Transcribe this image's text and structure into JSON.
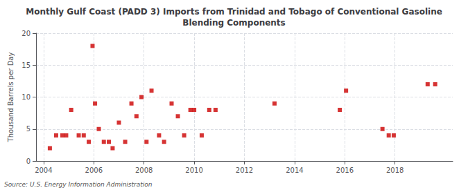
{
  "chart_data": {
    "type": "scatter",
    "title": "Monthly Gulf Coast (PADD 3) Imports from Trinidad and Tobago of Conventional Gasoline\nBlending Components",
    "ylabel": "Thousand Barrels per Day",
    "source": "Source: U.S. Energy Information Administration",
    "color": "#cc0000",
    "marker": "square",
    "grid": true,
    "xlim": [
      2003.7,
      2020.3
    ],
    "ylim": [
      0,
      20
    ],
    "xticks": [
      2004,
      2006,
      2008,
      2010,
      2012,
      2014,
      2016,
      2018
    ],
    "yticks": [
      0,
      5,
      10,
      15,
      20
    ],
    "x": [
      2004.25,
      2004.5,
      2004.75,
      2004.9,
      2005.1,
      2005.4,
      2005.6,
      2005.8,
      2005.95,
      2006.05,
      2006.2,
      2006.4,
      2006.6,
      2006.75,
      2007.0,
      2007.25,
      2007.5,
      2007.7,
      2007.9,
      2008.1,
      2008.3,
      2008.6,
      2008.8,
      2009.1,
      2009.35,
      2009.6,
      2009.85,
      2010.0,
      2010.3,
      2010.6,
      2010.85,
      2013.2,
      2015.8,
      2016.05,
      2017.5,
      2017.75,
      2017.95,
      2019.3,
      2019.6
    ],
    "values": [
      2,
      4,
      4,
      4,
      8,
      4,
      4,
      3,
      18,
      9,
      5,
      3,
      3,
      2,
      6,
      3,
      9,
      7,
      10,
      3,
      11,
      4,
      3,
      9,
      7,
      4,
      8,
      8,
      4,
      8,
      8,
      9,
      8,
      11,
      5,
      4,
      4,
      12,
      12
    ]
  }
}
